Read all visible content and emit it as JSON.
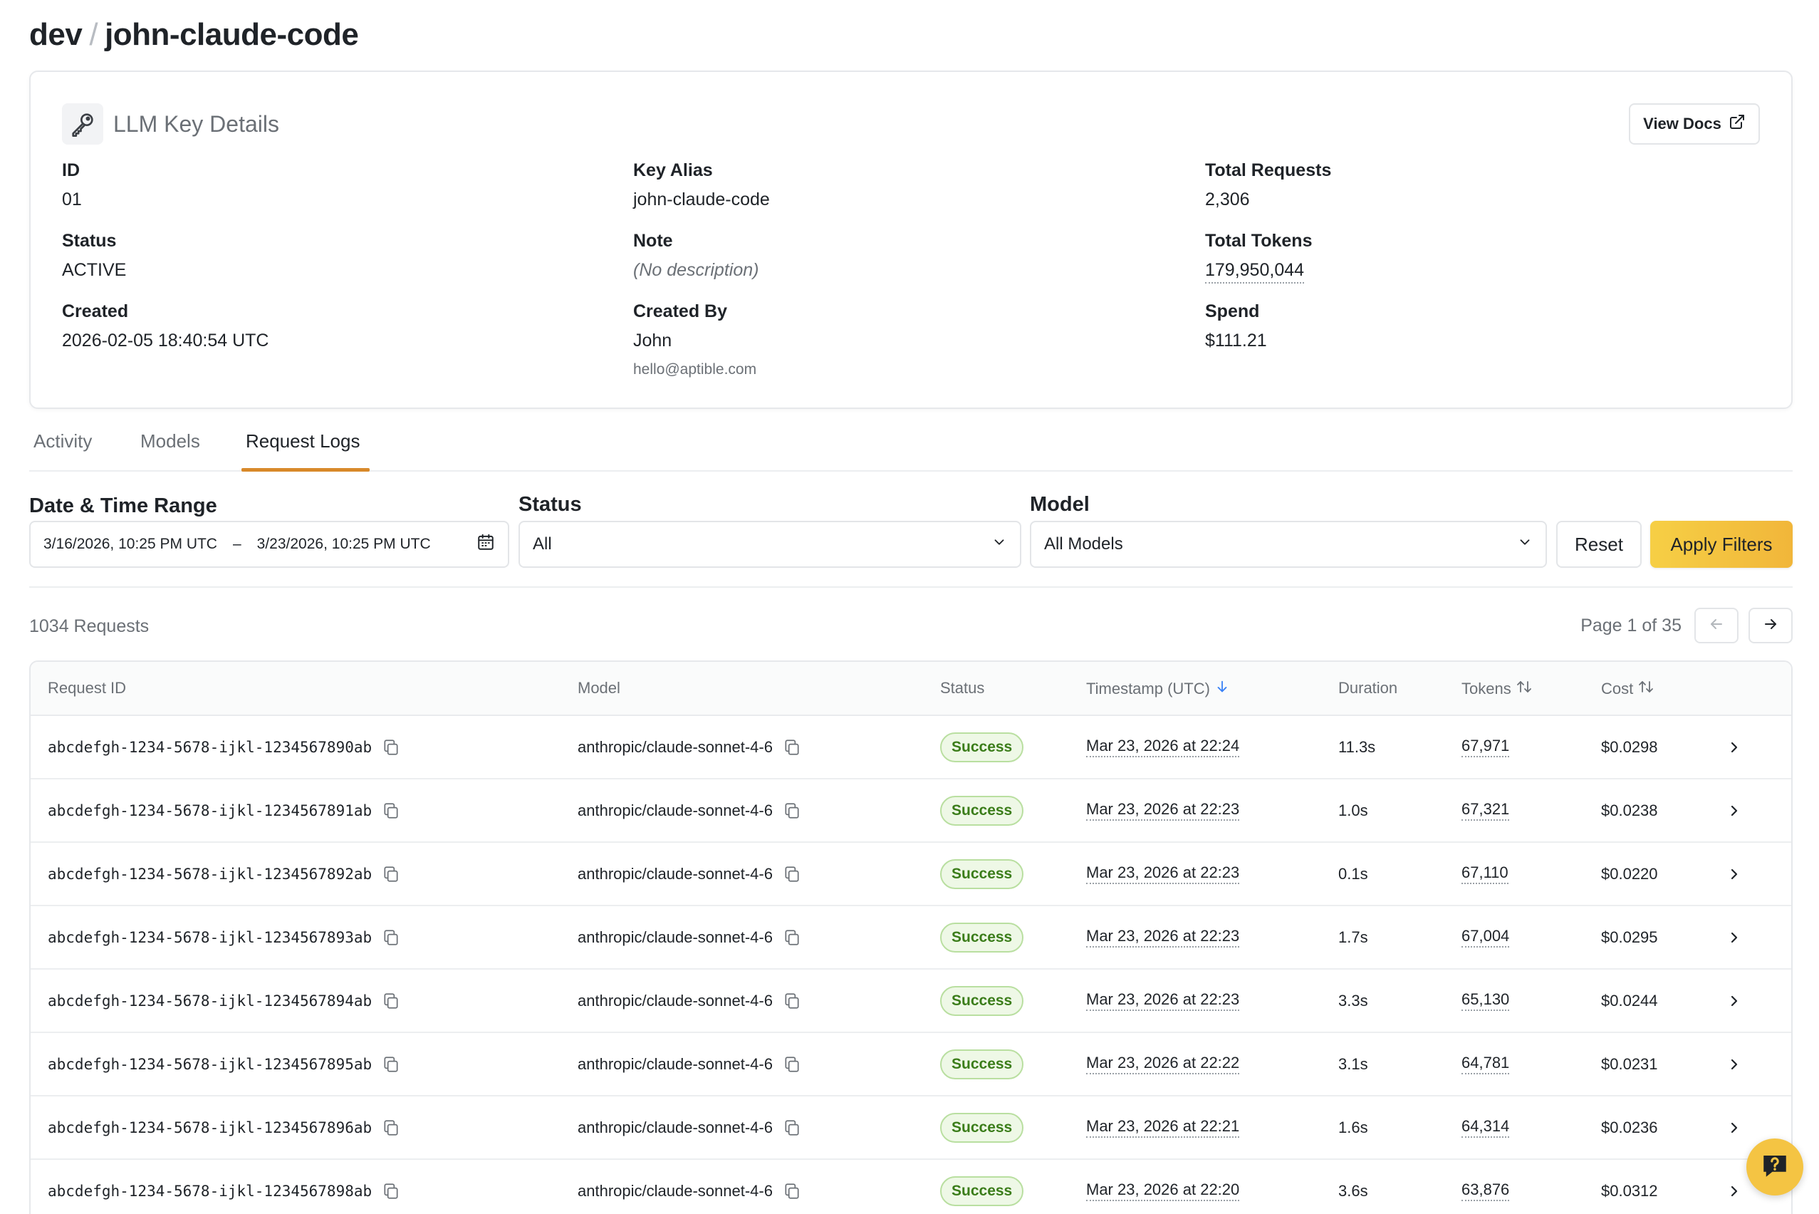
{
  "breadcrumb": {
    "org": "dev",
    "separator": "/",
    "key": "john-claude-code"
  },
  "card": {
    "title": "LLM Key Details",
    "view_docs": "View Docs",
    "fields": {
      "id": {
        "label": "ID",
        "value": "01"
      },
      "key_alias": {
        "label": "Key Alias",
        "value": "john-claude-code"
      },
      "total_requests": {
        "label": "Total Requests",
        "value": "2,306"
      },
      "status": {
        "label": "Status",
        "value": "ACTIVE"
      },
      "note": {
        "label": "Note",
        "value": "(No description)"
      },
      "total_tokens": {
        "label": "Total Tokens",
        "value": "179,950,044"
      },
      "created": {
        "label": "Created",
        "value": "2026-02-05 18:40:54 UTC"
      },
      "created_by": {
        "label": "Created By",
        "value": "John",
        "email": "hello@aptible.com"
      },
      "spend": {
        "label": "Spend",
        "value": "$111.21"
      }
    }
  },
  "tabs": [
    {
      "label": "Activity",
      "active": false
    },
    {
      "label": "Models",
      "active": false
    },
    {
      "label": "Request Logs",
      "active": true
    }
  ],
  "filters": {
    "date_label": "Date & Time Range",
    "date_start": "3/16/2026, 10:25 PM UTC",
    "date_sep": "–",
    "date_end": "3/23/2026, 10:25 PM UTC",
    "status_label": "Status",
    "status_value": "All",
    "model_label": "Model",
    "model_value": "All Models",
    "reset": "Reset",
    "apply": "Apply Filters"
  },
  "results": {
    "count": "1034 Requests",
    "page_text": "Page 1 of 35"
  },
  "table": {
    "columns": {
      "request_id": "Request ID",
      "model": "Model",
      "status": "Status",
      "timestamp": "Timestamp (UTC)",
      "duration": "Duration",
      "tokens": "Tokens",
      "cost": "Cost"
    },
    "rows": [
      {
        "id": "abcdefgh-1234-5678-ijkl-1234567890ab",
        "model": "anthropic/claude-sonnet-4-6",
        "status": "Success",
        "timestamp": "Mar 23, 2026 at 22:24",
        "duration": "11.3s",
        "tokens": "67,971",
        "cost": "$0.0298"
      },
      {
        "id": "abcdefgh-1234-5678-ijkl-1234567891ab",
        "model": "anthropic/claude-sonnet-4-6",
        "status": "Success",
        "timestamp": "Mar 23, 2026 at 22:23",
        "duration": "1.0s",
        "tokens": "67,321",
        "cost": "$0.0238"
      },
      {
        "id": "abcdefgh-1234-5678-ijkl-1234567892ab",
        "model": "anthropic/claude-sonnet-4-6",
        "status": "Success",
        "timestamp": "Mar 23, 2026 at 22:23",
        "duration": "0.1s",
        "tokens": "67,110",
        "cost": "$0.0220"
      },
      {
        "id": "abcdefgh-1234-5678-ijkl-1234567893ab",
        "model": "anthropic/claude-sonnet-4-6",
        "status": "Success",
        "timestamp": "Mar 23, 2026 at 22:23",
        "duration": "1.7s",
        "tokens": "67,004",
        "cost": "$0.0295"
      },
      {
        "id": "abcdefgh-1234-5678-ijkl-1234567894ab",
        "model": "anthropic/claude-sonnet-4-6",
        "status": "Success",
        "timestamp": "Mar 23, 2026 at 22:23",
        "duration": "3.3s",
        "tokens": "65,130",
        "cost": "$0.0244"
      },
      {
        "id": "abcdefgh-1234-5678-ijkl-1234567895ab",
        "model": "anthropic/claude-sonnet-4-6",
        "status": "Success",
        "timestamp": "Mar 23, 2026 at 22:22",
        "duration": "3.1s",
        "tokens": "64,781",
        "cost": "$0.0231"
      },
      {
        "id": "abcdefgh-1234-5678-ijkl-1234567896ab",
        "model": "anthropic/claude-sonnet-4-6",
        "status": "Success",
        "timestamp": "Mar 23, 2026 at 22:21",
        "duration": "1.6s",
        "tokens": "64,314",
        "cost": "$0.0236"
      },
      {
        "id": "abcdefgh-1234-5678-ijkl-1234567898ab",
        "model": "anthropic/claude-sonnet-4-6",
        "status": "Success",
        "timestamp": "Mar 23, 2026 at 22:20",
        "duration": "3.6s",
        "tokens": "63,876",
        "cost": "$0.0312"
      }
    ]
  },
  "colors": {
    "accent": "#d8892a",
    "apply_button": "#f4c443",
    "success_text": "#3b7d1a",
    "success_bg": "#eef8e6"
  },
  "icons": [
    "key-icon",
    "external-link-icon",
    "calendar-icon",
    "chevron-down-icon",
    "arrow-left-icon",
    "arrow-right-icon",
    "sort-down-icon",
    "sort-both-icon",
    "copy-icon",
    "chevron-right-icon",
    "help-chat-icon"
  ]
}
